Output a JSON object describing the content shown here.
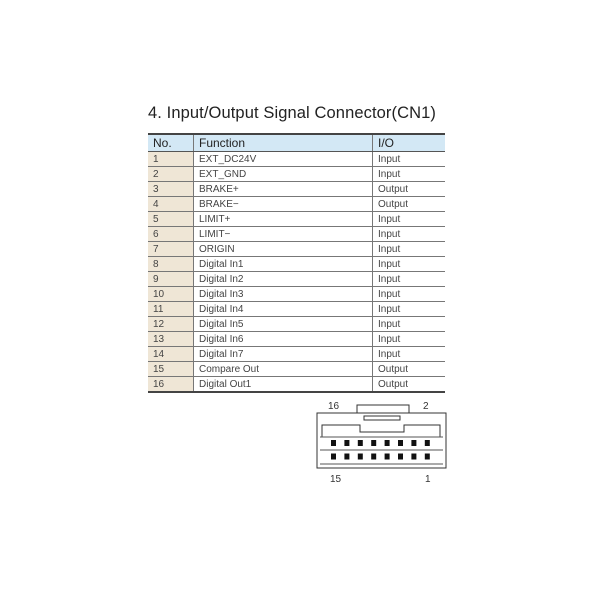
{
  "title": "4. Input/Output Signal Connector(CN1)",
  "table": {
    "headers": [
      "No.",
      "Function",
      "I/O"
    ],
    "rows": [
      [
        "1",
        "EXT_DC24V",
        "Input"
      ],
      [
        "2",
        "EXT_GND",
        "Input"
      ],
      [
        "3",
        "BRAKE+",
        "Output"
      ],
      [
        "4",
        "BRAKE−",
        "Output"
      ],
      [
        "5",
        "LIMIT+",
        "Input"
      ],
      [
        "6",
        "LIMIT−",
        "Input"
      ],
      [
        "7",
        "ORIGIN",
        "Input"
      ],
      [
        "8",
        "Digital In1",
        "Input"
      ],
      [
        "9",
        "Digital In2",
        "Input"
      ],
      [
        "10",
        "Digital In3",
        "Input"
      ],
      [
        "11",
        "Digital In4",
        "Input"
      ],
      [
        "12",
        "Digital In5",
        "Input"
      ],
      [
        "13",
        "Digital In6",
        "Input"
      ],
      [
        "14",
        "Digital In7",
        "Input"
      ],
      [
        "15",
        "Compare Out",
        "Output"
      ],
      [
        "16",
        "Digital Out1",
        "Output"
      ]
    ]
  },
  "connector": {
    "pin_labels": {
      "top_left": "16",
      "top_right": "2",
      "bottom_left": "15",
      "bottom_right": "1"
    },
    "pins_per_row": 8,
    "rows": 2
  },
  "colors": {
    "header_bg": "#d3e8f5",
    "no_column_bg": "#efe6d6"
  }
}
